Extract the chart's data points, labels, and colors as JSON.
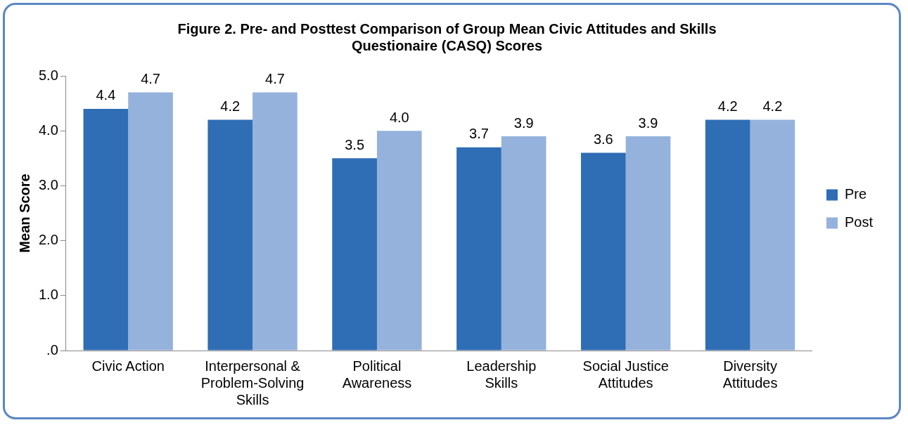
{
  "chart_data": {
    "type": "bar",
    "title": "Figure 2. Pre- and Posttest Comparison of Group Mean Civic Attitudes and Skills Questionaire (CASQ) Scores",
    "ylabel": "Mean Score",
    "categories": [
      "Civic Action",
      "Interpersonal & Problem-Solving Skills",
      "Political Awareness",
      "Leadership Skills",
      "Social Justice Attitudes",
      "Diversity Attitudes"
    ],
    "series": [
      {
        "name": "Pre",
        "color": "#2f6db5",
        "values": [
          4.4,
          4.2,
          3.5,
          3.7,
          3.6,
          4.2
        ],
        "value_labels": [
          "4.4",
          "4.2",
          "3.5",
          "3.7",
          "3.6",
          "4.2"
        ]
      },
      {
        "name": "Post",
        "color": "#95b2dc",
        "values": [
          4.7,
          4.7,
          4.0,
          3.9,
          3.9,
          4.2
        ],
        "value_labels": [
          "4.7",
          "4.7",
          "4.0",
          "3.9",
          "3.9",
          "4.2"
        ]
      }
    ],
    "ylim": [
      0,
      5
    ],
    "yticks": [
      {
        "value": 0,
        "label": ".0"
      },
      {
        "value": 1,
        "label": "1.0"
      },
      {
        "value": 2,
        "label": "2.0"
      },
      {
        "value": 3,
        "label": "3.0"
      },
      {
        "value": 4,
        "label": "4.0"
      },
      {
        "value": 5,
        "label": "5.0"
      }
    ],
    "grid": false,
    "legend": "right"
  }
}
